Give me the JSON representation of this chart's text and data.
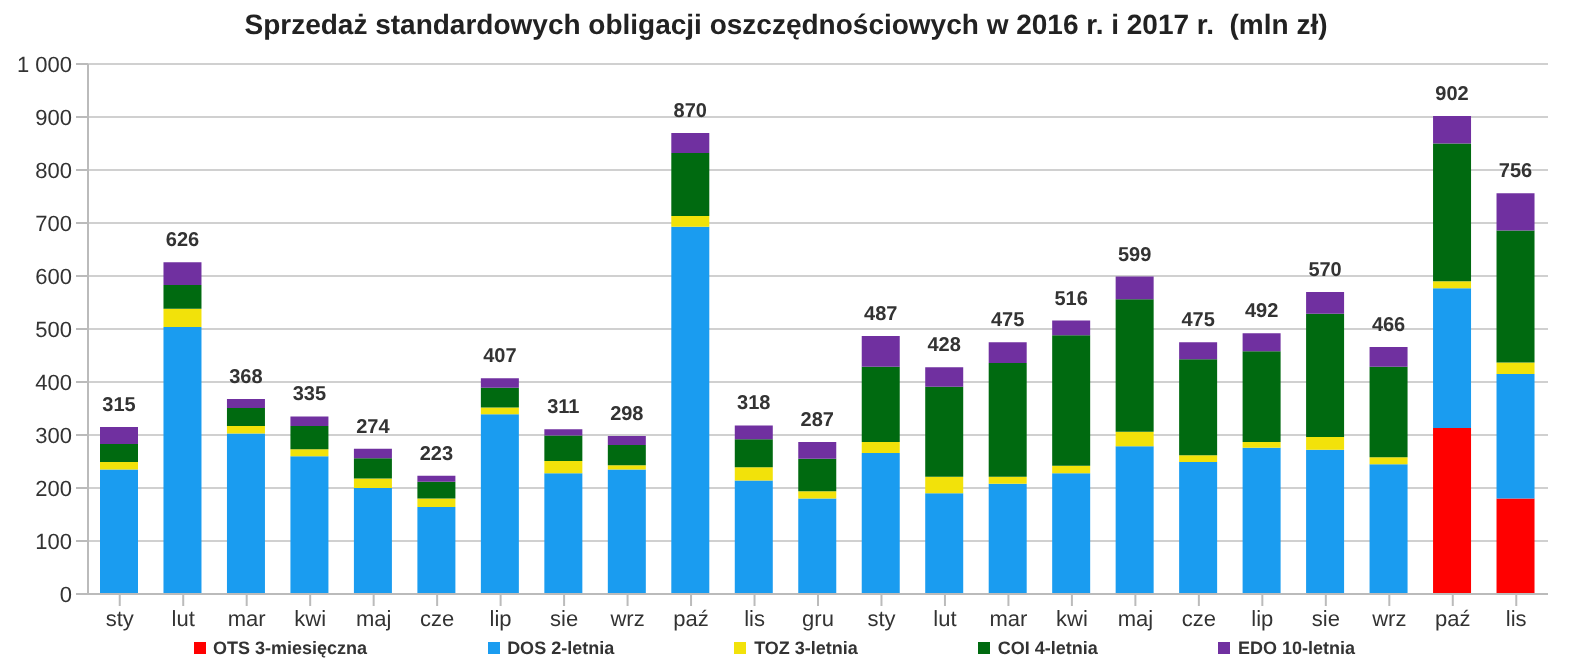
{
  "chart_data": {
    "type": "bar",
    "title": "Sprzedaż standardowych obligacji oszczędnościowych w 2016 r. i 2017 r.  (mln zł)",
    "categories": [
      "sty",
      "lut",
      "mar",
      "kwi",
      "maj",
      "cze",
      "lip",
      "sie",
      "wrz",
      "paź",
      "lis",
      "gru",
      "sty",
      "lut",
      "mar",
      "kwi",
      "maj",
      "cze",
      "lip",
      "sie",
      "wrz",
      "paź",
      "lis"
    ],
    "stacked": true,
    "series": [
      {
        "name": "OTS 3-miesięczna",
        "color": "#ff0000",
        "values": [
          null,
          null,
          null,
          null,
          null,
          null,
          null,
          null,
          null,
          null,
          null,
          null,
          null,
          null,
          null,
          null,
          null,
          null,
          null,
          null,
          null,
          313,
          180
        ]
      },
      {
        "name": "DOS 2-letnia",
        "color": "#1a9cf0",
        "values": [
          235,
          504,
          303,
          260,
          200,
          164,
          339,
          228,
          235,
          693,
          214,
          180,
          266,
          190,
          208,
          228,
          279,
          249,
          276,
          272,
          245,
          264,
          235
        ]
      },
      {
        "name": "TOZ 3-letnia",
        "color": "#f2e20a",
        "values": [
          14,
          34,
          14,
          13,
          18,
          16,
          13,
          23,
          8,
          20,
          25,
          14,
          21,
          31,
          13,
          14,
          27,
          13,
          11,
          24,
          13,
          13,
          22
        ]
      },
      {
        "name": "COI 4-letnia",
        "color": "#006a10",
        "values": [
          34,
          45,
          34,
          44,
          38,
          32,
          37,
          48,
          38,
          119,
          53,
          61,
          142,
          170,
          215,
          246,
          250,
          181,
          171,
          233,
          171,
          260,
          249
        ]
      },
      {
        "name": "EDO 10-letnia",
        "color": "#7030a0",
        "values": [
          32,
          43,
          17,
          18,
          18,
          11,
          18,
          12,
          17,
          38,
          26,
          32,
          58,
          37,
          39,
          28,
          43,
          32,
          34,
          41,
          37,
          52,
          70
        ]
      }
    ],
    "totals": [
      "315",
      "626",
      "368",
      "335",
      "274",
      "223",
      "407",
      "311",
      "298",
      "870",
      "318",
      "287",
      "487",
      "428",
      "475",
      "516",
      "599",
      "475",
      "492",
      "570",
      "466",
      "902",
      "756"
    ],
    "ylim": [
      0,
      1000
    ],
    "yticks": [
      0,
      100,
      200,
      300,
      400,
      500,
      600,
      700,
      800,
      900,
      {
        "value": 1000,
        "label": "1 000"
      }
    ],
    "grid": "y",
    "legend": "bottom"
  }
}
